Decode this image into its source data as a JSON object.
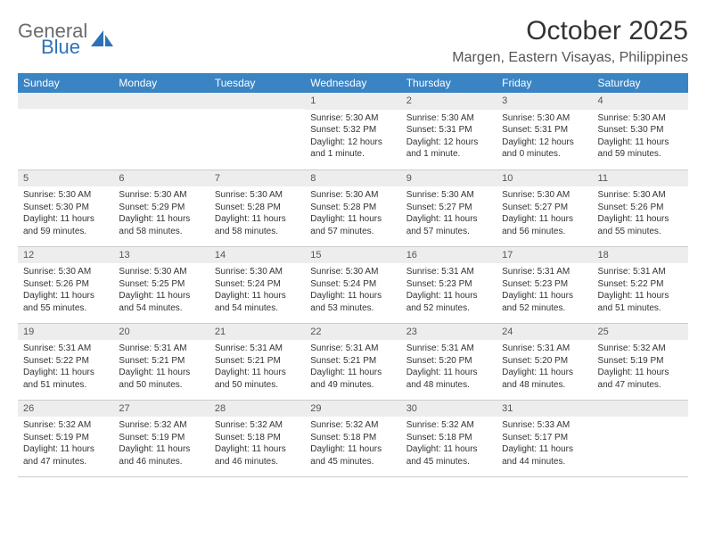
{
  "logo": {
    "general": "General",
    "blue": "Blue"
  },
  "title": "October 2025",
  "location": "Margen, Eastern Visayas, Philippines",
  "colors": {
    "header_bg": "#3b84c4",
    "header_text": "#ffffff",
    "daynum_bg": "#ededed",
    "border": "#cccccc",
    "logo_gray": "#6b6b6b",
    "logo_blue": "#2d72b8"
  },
  "weekdays": [
    "Sunday",
    "Monday",
    "Tuesday",
    "Wednesday",
    "Thursday",
    "Friday",
    "Saturday"
  ],
  "weeks": [
    [
      {
        "empty": true
      },
      {
        "empty": true
      },
      {
        "empty": true
      },
      {
        "day": "1",
        "sunrise": "Sunrise: 5:30 AM",
        "sunset": "Sunset: 5:32 PM",
        "daylight": "Daylight: 12 hours and 1 minute."
      },
      {
        "day": "2",
        "sunrise": "Sunrise: 5:30 AM",
        "sunset": "Sunset: 5:31 PM",
        "daylight": "Daylight: 12 hours and 1 minute."
      },
      {
        "day": "3",
        "sunrise": "Sunrise: 5:30 AM",
        "sunset": "Sunset: 5:31 PM",
        "daylight": "Daylight: 12 hours and 0 minutes."
      },
      {
        "day": "4",
        "sunrise": "Sunrise: 5:30 AM",
        "sunset": "Sunset: 5:30 PM",
        "daylight": "Daylight: 11 hours and 59 minutes."
      }
    ],
    [
      {
        "day": "5",
        "sunrise": "Sunrise: 5:30 AM",
        "sunset": "Sunset: 5:30 PM",
        "daylight": "Daylight: 11 hours and 59 minutes."
      },
      {
        "day": "6",
        "sunrise": "Sunrise: 5:30 AM",
        "sunset": "Sunset: 5:29 PM",
        "daylight": "Daylight: 11 hours and 58 minutes."
      },
      {
        "day": "7",
        "sunrise": "Sunrise: 5:30 AM",
        "sunset": "Sunset: 5:28 PM",
        "daylight": "Daylight: 11 hours and 58 minutes."
      },
      {
        "day": "8",
        "sunrise": "Sunrise: 5:30 AM",
        "sunset": "Sunset: 5:28 PM",
        "daylight": "Daylight: 11 hours and 57 minutes."
      },
      {
        "day": "9",
        "sunrise": "Sunrise: 5:30 AM",
        "sunset": "Sunset: 5:27 PM",
        "daylight": "Daylight: 11 hours and 57 minutes."
      },
      {
        "day": "10",
        "sunrise": "Sunrise: 5:30 AM",
        "sunset": "Sunset: 5:27 PM",
        "daylight": "Daylight: 11 hours and 56 minutes."
      },
      {
        "day": "11",
        "sunrise": "Sunrise: 5:30 AM",
        "sunset": "Sunset: 5:26 PM",
        "daylight": "Daylight: 11 hours and 55 minutes."
      }
    ],
    [
      {
        "day": "12",
        "sunrise": "Sunrise: 5:30 AM",
        "sunset": "Sunset: 5:26 PM",
        "daylight": "Daylight: 11 hours and 55 minutes."
      },
      {
        "day": "13",
        "sunrise": "Sunrise: 5:30 AM",
        "sunset": "Sunset: 5:25 PM",
        "daylight": "Daylight: 11 hours and 54 minutes."
      },
      {
        "day": "14",
        "sunrise": "Sunrise: 5:30 AM",
        "sunset": "Sunset: 5:24 PM",
        "daylight": "Daylight: 11 hours and 54 minutes."
      },
      {
        "day": "15",
        "sunrise": "Sunrise: 5:30 AM",
        "sunset": "Sunset: 5:24 PM",
        "daylight": "Daylight: 11 hours and 53 minutes."
      },
      {
        "day": "16",
        "sunrise": "Sunrise: 5:31 AM",
        "sunset": "Sunset: 5:23 PM",
        "daylight": "Daylight: 11 hours and 52 minutes."
      },
      {
        "day": "17",
        "sunrise": "Sunrise: 5:31 AM",
        "sunset": "Sunset: 5:23 PM",
        "daylight": "Daylight: 11 hours and 52 minutes."
      },
      {
        "day": "18",
        "sunrise": "Sunrise: 5:31 AM",
        "sunset": "Sunset: 5:22 PM",
        "daylight": "Daylight: 11 hours and 51 minutes."
      }
    ],
    [
      {
        "day": "19",
        "sunrise": "Sunrise: 5:31 AM",
        "sunset": "Sunset: 5:22 PM",
        "daylight": "Daylight: 11 hours and 51 minutes."
      },
      {
        "day": "20",
        "sunrise": "Sunrise: 5:31 AM",
        "sunset": "Sunset: 5:21 PM",
        "daylight": "Daylight: 11 hours and 50 minutes."
      },
      {
        "day": "21",
        "sunrise": "Sunrise: 5:31 AM",
        "sunset": "Sunset: 5:21 PM",
        "daylight": "Daylight: 11 hours and 50 minutes."
      },
      {
        "day": "22",
        "sunrise": "Sunrise: 5:31 AM",
        "sunset": "Sunset: 5:21 PM",
        "daylight": "Daylight: 11 hours and 49 minutes."
      },
      {
        "day": "23",
        "sunrise": "Sunrise: 5:31 AM",
        "sunset": "Sunset: 5:20 PM",
        "daylight": "Daylight: 11 hours and 48 minutes."
      },
      {
        "day": "24",
        "sunrise": "Sunrise: 5:31 AM",
        "sunset": "Sunset: 5:20 PM",
        "daylight": "Daylight: 11 hours and 48 minutes."
      },
      {
        "day": "25",
        "sunrise": "Sunrise: 5:32 AM",
        "sunset": "Sunset: 5:19 PM",
        "daylight": "Daylight: 11 hours and 47 minutes."
      }
    ],
    [
      {
        "day": "26",
        "sunrise": "Sunrise: 5:32 AM",
        "sunset": "Sunset: 5:19 PM",
        "daylight": "Daylight: 11 hours and 47 minutes."
      },
      {
        "day": "27",
        "sunrise": "Sunrise: 5:32 AM",
        "sunset": "Sunset: 5:19 PM",
        "daylight": "Daylight: 11 hours and 46 minutes."
      },
      {
        "day": "28",
        "sunrise": "Sunrise: 5:32 AM",
        "sunset": "Sunset: 5:18 PM",
        "daylight": "Daylight: 11 hours and 46 minutes."
      },
      {
        "day": "29",
        "sunrise": "Sunrise: 5:32 AM",
        "sunset": "Sunset: 5:18 PM",
        "daylight": "Daylight: 11 hours and 45 minutes."
      },
      {
        "day": "30",
        "sunrise": "Sunrise: 5:32 AM",
        "sunset": "Sunset: 5:18 PM",
        "daylight": "Daylight: 11 hours and 45 minutes."
      },
      {
        "day": "31",
        "sunrise": "Sunrise: 5:33 AM",
        "sunset": "Sunset: 5:17 PM",
        "daylight": "Daylight: 11 hours and 44 minutes."
      },
      {
        "empty": true
      }
    ]
  ]
}
